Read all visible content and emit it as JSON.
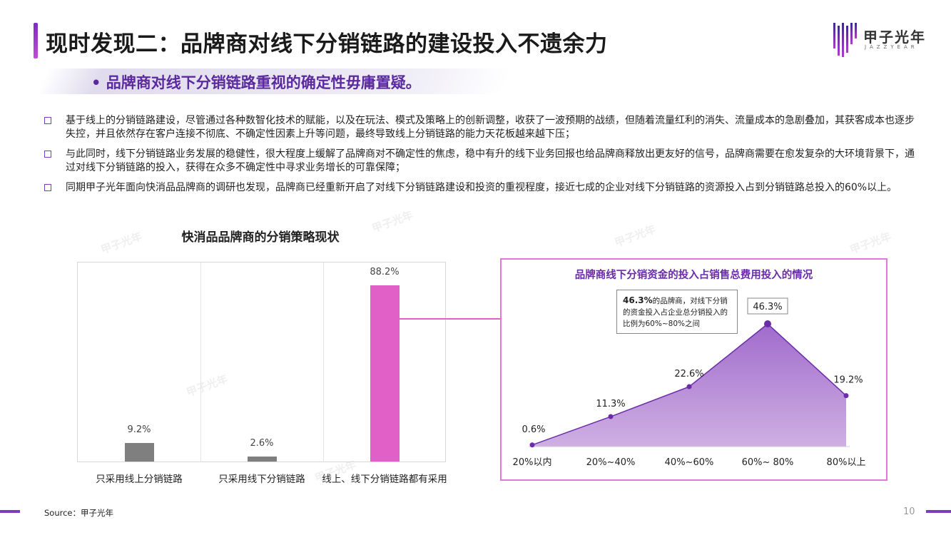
{
  "header": {
    "title": "现时发现二：品牌商对线下分销链路的建设投入不遗余力",
    "logo_text": "甲子光年",
    "logo_sub": "JAZZYEAR"
  },
  "subtitle": "•  品牌商对线下分销链路重视的确定性毋庸置疑。",
  "bullets": [
    "基于线上的分销链路建设，尽管通过各种数智化技术的赋能，以及在玩法、模式及策略上的创新调整，收获了一波预期的战绩，但随着流量红利的消失、流量成本的急剧叠加，其获客成本也逐步失控，并且依然存在客户连接不彻底、不确定性因素上升等问题，最终导致线上分销链路的能力天花板越来越下压；",
    "与此同时，线下分销链路业务发展的稳健性，很大程度上缓解了品牌商对不确定性的焦虑，稳中有升的线下业务回报也给品牌商释放出更友好的信号，品牌商需要在愈发复杂的大环境背景下，通过对线下分销链路的投入，获得在众多不确定性中寻求业务增长的可靠保障；",
    "同期甲子光年面向快消品品牌商的调研也发现，品牌商已经重新开启了对线下分销链路建设和投资的重视程度，接近七成的企业对线下分销链路的资源投入占到分销链路总投入的60%以上。"
  ],
  "chart_data": [
    {
      "type": "bar",
      "title": "快消品品牌商的分销策略现状",
      "categories": [
        "只采用线上分销链路",
        "只采用线下分销链路",
        "线上、线下分销链路都有采用"
      ],
      "values": [
        9.2,
        2.6,
        88.2
      ],
      "value_labels": [
        "9.2%",
        "2.6%",
        "88.2%"
      ],
      "colors": [
        "#7f7f7f",
        "#7f7f7f",
        "#e060c8"
      ],
      "ylim": [
        0,
        100
      ],
      "grid": true
    },
    {
      "type": "area",
      "title": "品牌商线下分销资金的投入占销售总费用投入的情况",
      "categories": [
        "20%以内",
        "20%~40%",
        "40%~60%",
        "60%~ 80%",
        "80%以上"
      ],
      "values": [
        0.6,
        11.3,
        22.6,
        46.3,
        19.2
      ],
      "value_labels": [
        "0.6%",
        "11.3%",
        "22.6%",
        "46.3%",
        "19.2%"
      ],
      "color": "#8a4bbf",
      "ylim": [
        0,
        50
      ],
      "annotation": {
        "bold": "46.3%",
        "text": "的品牌商，对线下分销的资金投入占企业总分销投入的比例为60%~80%之间"
      }
    }
  ],
  "footer": {
    "source": "Source：甲子光年",
    "page": "10"
  }
}
